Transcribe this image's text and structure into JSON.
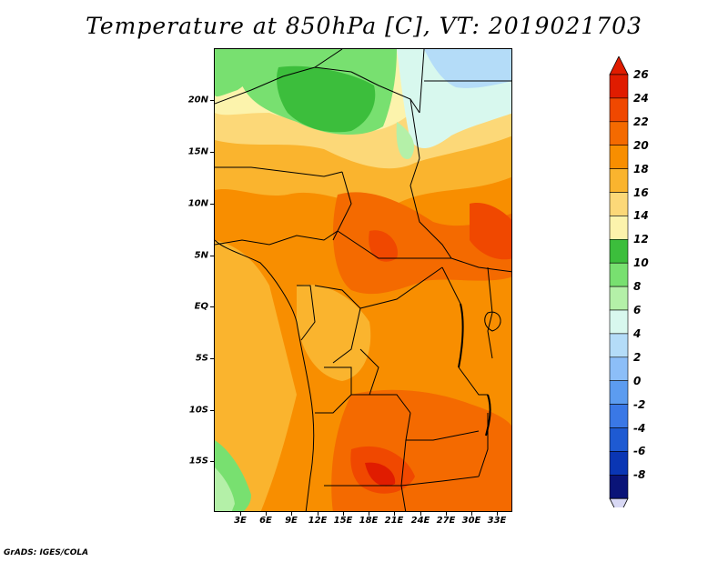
{
  "title": "Temperature at 850hPa [C], VT: 2019021703",
  "footer": "GrADS: IGES/COLA",
  "map": {
    "lat_labels": [
      "20N",
      "15N",
      "10N",
      "5N",
      "EQ",
      "5S",
      "10S",
      "15S"
    ],
    "lon_labels": [
      "3E",
      "6E",
      "9E",
      "12E",
      "15E",
      "18E",
      "21E",
      "24E",
      "27E",
      "30E",
      "33E"
    ]
  },
  "colorbar": {
    "labels": [
      "26",
      "24",
      "22",
      "20",
      "18",
      "16",
      "14",
      "12",
      "10",
      "8",
      "6",
      "4",
      "2",
      "0",
      "-2",
      "-4",
      "-6",
      "-8"
    ],
    "colors": [
      "#e01c00",
      "#f04800",
      "#f46a00",
      "#f88e00",
      "#fab42e",
      "#fcd878",
      "#fcf3ac",
      "#3cbe3c",
      "#78e070",
      "#b4f0a8",
      "#d8f8ee",
      "#b4dcf8",
      "#8cbef8",
      "#5c9cf0",
      "#3a78e6",
      "#1e5ad2",
      "#0a36b4",
      "#0a1478"
    ],
    "over_color": "#e01c00",
    "under_color": "#d8d8f4"
  }
}
